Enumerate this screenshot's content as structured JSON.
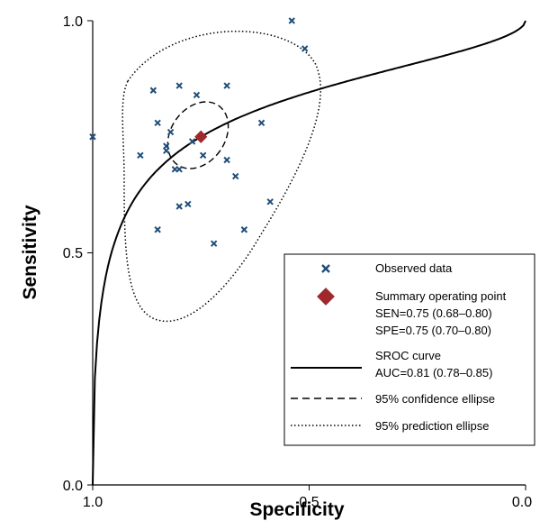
{
  "chart_data": {
    "type": "scatter",
    "xlabel": "Specificity",
    "ylabel": "Sensitivity",
    "xlim": [
      1.0,
      0.0
    ],
    "ylim": [
      0.0,
      1.0
    ],
    "x_ticks": [
      "1.0",
      "0.5",
      "0.0"
    ],
    "y_ticks": [
      "0.0",
      "0.5",
      "1.0"
    ],
    "x_reversed": true,
    "grid": false,
    "legend_position": "bottom-right",
    "colors": {
      "observed": "#1f4e79",
      "summary": "#a0282d",
      "curve": "#000000"
    },
    "observed_points": [
      {
        "spe": 1.0,
        "sen": 0.75
      },
      {
        "spe": 0.89,
        "sen": 0.71
      },
      {
        "spe": 0.86,
        "sen": 0.85
      },
      {
        "spe": 0.85,
        "sen": 0.78
      },
      {
        "spe": 0.85,
        "sen": 0.55
      },
      {
        "spe": 0.83,
        "sen": 0.73
      },
      {
        "spe": 0.83,
        "sen": 0.72
      },
      {
        "spe": 0.82,
        "sen": 0.76
      },
      {
        "spe": 0.81,
        "sen": 0.68
      },
      {
        "spe": 0.8,
        "sen": 0.86
      },
      {
        "spe": 0.8,
        "sen": 0.68
      },
      {
        "spe": 0.8,
        "sen": 0.6
      },
      {
        "spe": 0.78,
        "sen": 0.605
      },
      {
        "spe": 0.77,
        "sen": 0.74
      },
      {
        "spe": 0.76,
        "sen": 0.84
      },
      {
        "spe": 0.745,
        "sen": 0.71
      },
      {
        "spe": 0.72,
        "sen": 0.52
      },
      {
        "spe": 0.69,
        "sen": 0.86
      },
      {
        "spe": 0.69,
        "sen": 0.7
      },
      {
        "spe": 0.67,
        "sen": 0.665
      },
      {
        "spe": 0.65,
        "sen": 0.55
      },
      {
        "spe": 0.61,
        "sen": 0.78
      },
      {
        "spe": 0.59,
        "sen": 0.61
      },
      {
        "spe": 0.54,
        "sen": 1.0
      },
      {
        "spe": 0.51,
        "sen": 0.94
      }
    ],
    "summary_point": {
      "spe": 0.75,
      "sen": 0.75
    },
    "confidence_ellipse": {
      "spe": 0.75,
      "sen": 0.75
    },
    "legend": [
      {
        "key": "observed",
        "label": "Observed data"
      },
      {
        "key": "summary",
        "label": "Summary operating point",
        "lines": [
          "SEN=0.75 (0.68–0.80)",
          "SPE=0.75 (0.70–0.80)"
        ]
      },
      {
        "key": "sroc",
        "label": "SROC curve",
        "lines": [
          "AUC=0.81 (0.78–0.85)"
        ]
      },
      {
        "key": "confidence",
        "label": "95% confidence ellipse"
      },
      {
        "key": "prediction",
        "label": "95% prediction ellipse"
      }
    ]
  }
}
